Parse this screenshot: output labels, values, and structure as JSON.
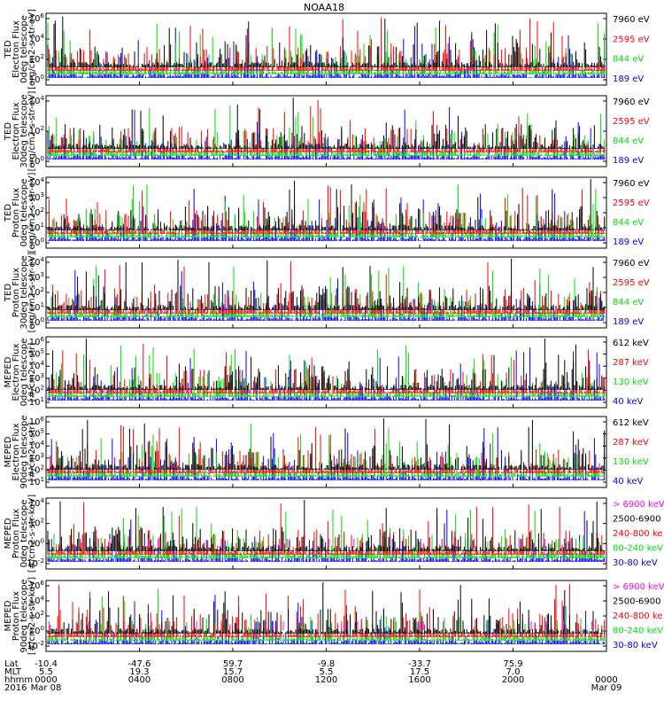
{
  "title": "NOAA18",
  "chart_data": [
    {
      "type": "line",
      "instrument": "TED",
      "ylabel": [
        "TED",
        "Electron Flux",
        "0deg telescope",
        "[erg/cm2-s-str-eV]"
      ],
      "yticks": [
        "10^0",
        "10^2",
        "10^4",
        "10^6"
      ],
      "series": [
        {
          "name": "7960 eV",
          "color": "#000000"
        },
        {
          "name": "2595 eV",
          "color": "#ff0000"
        },
        {
          "name": "844 eV",
          "color": "#00dd00"
        },
        {
          "name": "189 eV",
          "color": "#0000ff"
        }
      ]
    },
    {
      "type": "line",
      "instrument": "TED",
      "ylabel": [
        "TED",
        "Electron Flux",
        "30deg telescope",
        "[erg/cm2-s-str-eV]"
      ],
      "yticks": [
        "10^0",
        "10^2",
        "10^4"
      ],
      "series": [
        {
          "name": "7960 eV",
          "color": "#000000"
        },
        {
          "name": "2595 eV",
          "color": "#ff0000"
        },
        {
          "name": "844 eV",
          "color": "#00dd00"
        },
        {
          "name": "189 eV",
          "color": "#0000ff"
        }
      ]
    },
    {
      "type": "line",
      "instrument": "TED",
      "ylabel": [
        "TED",
        "Proton Flux",
        "0deg telescope",
        "[erg/cm2-s-str-eV]"
      ],
      "yticks": [
        "10^0",
        "10^1",
        "10^2",
        "10^3",
        "10^4"
      ],
      "series": [
        {
          "name": "7960 eV",
          "color": "#000000"
        },
        {
          "name": "2595 eV",
          "color": "#ff0000"
        },
        {
          "name": "844 eV",
          "color": "#00dd00"
        },
        {
          "name": "189 eV",
          "color": "#0000ff"
        }
      ]
    },
    {
      "type": "line",
      "instrument": "TED",
      "ylabel": [
        "TED",
        "Proton Flux",
        "30deg telescope",
        "[erg/cm2-s-str-eV]"
      ],
      "yticks": [
        "10^0",
        "10^1",
        "10^2",
        "10^3",
        "10^4"
      ],
      "series": [
        {
          "name": "7960 eV",
          "color": "#000000"
        },
        {
          "name": "2595 eV",
          "color": "#ff0000"
        },
        {
          "name": "844 eV",
          "color": "#00dd00"
        },
        {
          "name": "189 eV",
          "color": "#0000ff"
        }
      ]
    },
    {
      "type": "line",
      "instrument": "MEPED",
      "ylabel": [
        "MEPED",
        "Electron Flux",
        "0deg telescope",
        "[#/cm2-s-str]"
      ],
      "yticks": [
        "10^1",
        "10^2",
        "10^3",
        "10^4",
        "10^5",
        "10^6"
      ],
      "series": [
        {
          "name": "612 keV",
          "color": "#000000"
        },
        {
          "name": "287 keV",
          "color": "#ff0000"
        },
        {
          "name": "130 keV",
          "color": "#00dd00"
        },
        {
          "name": "40 keV",
          "color": "#0000ff"
        }
      ]
    },
    {
      "type": "line",
      "instrument": "MEPED",
      "ylabel": [
        "MEPED",
        "Electron Flux",
        "90deg telescope",
        "[#/cm2-s-str]"
      ],
      "yticks": [
        "10^1",
        "10^2",
        "10^3",
        "10^4",
        "10^5",
        "10^6"
      ],
      "series": [
        {
          "name": "612 keV",
          "color": "#000000"
        },
        {
          "name": "287 keV",
          "color": "#ff0000"
        },
        {
          "name": "130 keV",
          "color": "#00dd00"
        },
        {
          "name": "40 keV",
          "color": "#0000ff"
        }
      ]
    },
    {
      "type": "line",
      "instrument": "MEPED",
      "ylabel": [
        "MEPED",
        "Proton Flux",
        "0deg telescope",
        "[#/cm2-s-str-keV]"
      ],
      "yticks": [
        "10^-2",
        "10^0",
        "10^2",
        "10^4"
      ],
      "series": [
        {
          "name": "> 6900 keV",
          "color": "#ff00ff"
        },
        {
          "name": "2500-6900",
          "color": "#000000"
        },
        {
          "name": "240-800 ke",
          "color": "#ff0000"
        },
        {
          "name": "80-240 keV",
          "color": "#00dd00"
        },
        {
          "name": "30-80 keV",
          "color": "#0000ff"
        }
      ]
    },
    {
      "type": "line",
      "instrument": "MEPED",
      "ylabel": [
        "MEPED",
        "Proton Flux",
        "90deg telescope",
        "[#/cm2-s-str-keV]"
      ],
      "yticks": [
        "10^-2",
        "10^0",
        "10^2",
        "10^4",
        "10^6"
      ],
      "series": [
        {
          "name": "> 6900 keV",
          "color": "#ff00ff"
        },
        {
          "name": "2500-6900",
          "color": "#000000"
        },
        {
          "name": "240-800 ke",
          "color": "#ff0000"
        },
        {
          "name": "80-240 keV",
          "color": "#00dd00"
        },
        {
          "name": "30-80 keV",
          "color": "#0000ff"
        }
      ]
    }
  ],
  "xaxis": {
    "row_labels": [
      "Lat",
      "MLT",
      "hhmm",
      "2016"
    ],
    "ticks": [
      {
        "lat": "-10.4",
        "mlt": "5.5",
        "hhmm": "0000",
        "date": "Mar 08"
      },
      {
        "lat": "-47.6",
        "mlt": "19.3",
        "hhmm": "0400",
        "date": ""
      },
      {
        "lat": "59.7",
        "mlt": "15.7",
        "hhmm": "0800",
        "date": ""
      },
      {
        "lat": "-9.8",
        "mlt": "5.5",
        "hhmm": "1200",
        "date": ""
      },
      {
        "lat": "-33.7",
        "mlt": "17.5",
        "hhmm": "1600",
        "date": ""
      },
      {
        "lat": "75.9",
        "mlt": "7.0",
        "hhmm": "2000",
        "date": ""
      },
      {
        "lat": "",
        "mlt": "",
        "hhmm": "0000",
        "date": "Mar 09"
      }
    ]
  }
}
